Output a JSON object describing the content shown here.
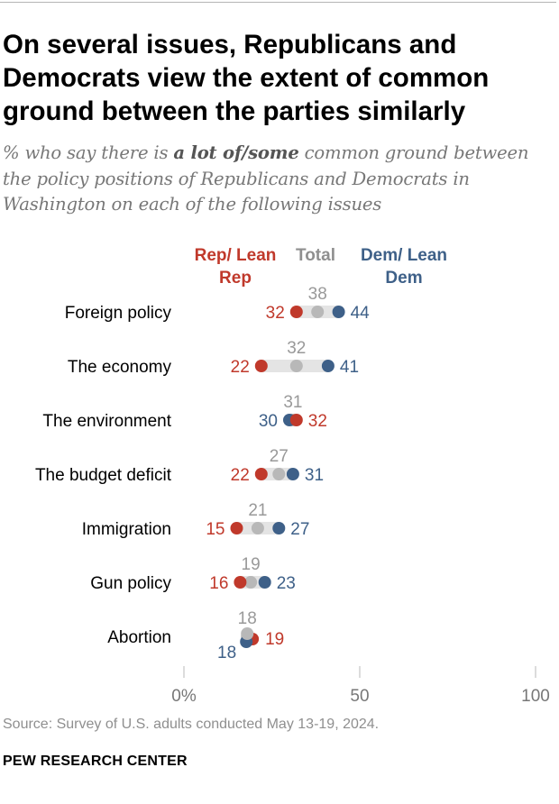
{
  "title": "On several issues, Republicans and Democrats view the extent of common ground between the parties similarly",
  "subtitle": {
    "prefix": "% who say there is ",
    "emphasis": "a lot of/some",
    "suffix": " common ground between the policy positions of Republicans and Democrats in Washington on each of the following issues"
  },
  "legend": {
    "rep": "Rep/ Lean Rep",
    "total": "Total",
    "dem": "Dem/ Lean Dem"
  },
  "colors": {
    "rep": "#c0392b",
    "total": "#b8b8b8",
    "total_label": "#999999",
    "dem": "#3e6088",
    "range": "#e4e4e4",
    "axis": "#c4c4c4"
  },
  "chart_data": {
    "type": "dot",
    "categories": [
      "Foreign policy",
      "The economy",
      "The environment",
      "The budget deficit",
      "Immigration",
      "Gun policy",
      "Abortion"
    ],
    "series": [
      {
        "name": "Rep/Lean Rep",
        "key": "rep",
        "values": [
          32,
          22,
          32,
          22,
          15,
          16,
          19
        ]
      },
      {
        "name": "Total",
        "key": "total",
        "values": [
          38,
          32,
          31,
          27,
          21,
          19,
          18
        ]
      },
      {
        "name": "Dem/Lean Dem",
        "key": "dem",
        "values": [
          44,
          41,
          30,
          31,
          27,
          23,
          18
        ]
      }
    ],
    "xlim": [
      0,
      100
    ],
    "ticks": [
      0,
      50,
      100
    ],
    "tick_labels": [
      "0%",
      "50",
      "100"
    ]
  },
  "source": "Source: Survey of U.S. adults conducted May 13-19, 2024.",
  "brand": "PEW RESEARCH CENTER"
}
